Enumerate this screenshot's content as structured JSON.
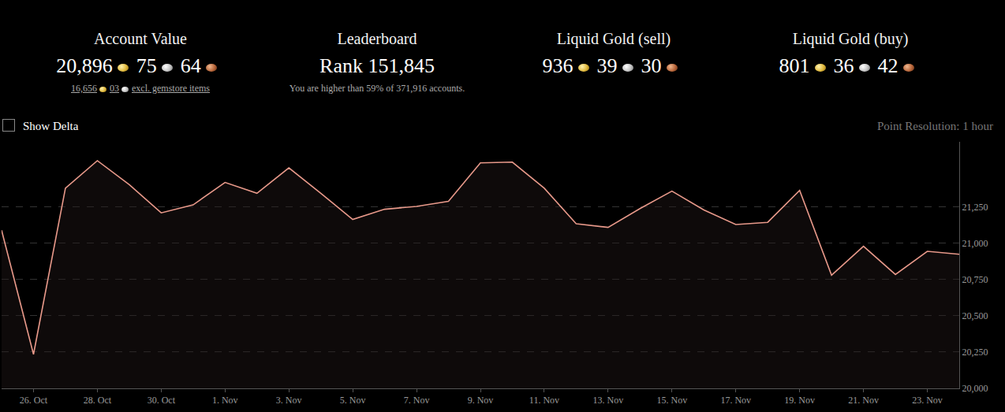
{
  "header": {
    "panels": [
      {
        "title": "Account Value",
        "value": {
          "gold": "20,896",
          "silver": "75",
          "copper": "64"
        },
        "sub": {
          "gold": "16,656",
          "silver": "03",
          "text": "excl. gemstore items"
        }
      },
      {
        "title": "Leaderboard",
        "text": "Rank 151,845",
        "note": "You are higher than 59% of 371,916 accounts."
      },
      {
        "title": "Liquid Gold (sell)",
        "value": {
          "gold": "936",
          "silver": "39",
          "copper": "30"
        }
      },
      {
        "title": "Liquid Gold (buy)",
        "value": {
          "gold": "801",
          "silver": "36",
          "copper": "42"
        }
      }
    ],
    "controls": {
      "checkbox": "Show Delta",
      "resolution": "Point Resolution: 1 hour"
    }
  },
  "chart_data": {
    "type": "line",
    "color": "#e8998a",
    "categories": [
      null,
      "26. Oct",
      null,
      "28. Oct",
      null,
      "30. Oct",
      null,
      "1. Nov",
      null,
      "3. Nov",
      null,
      "5. Nov",
      null,
      "7. Nov",
      null,
      "9. Nov",
      null,
      "11. Nov",
      null,
      "13. Nov",
      null,
      "15. Nov",
      null,
      "17. Nov",
      null,
      "19. Nov",
      null,
      "21. Nov",
      null,
      "23. Nov",
      null
    ],
    "values": [
      21090,
      20235,
      21380,
      21570,
      21405,
      21210,
      21265,
      21420,
      21345,
      21520,
      21345,
      21165,
      21235,
      21255,
      21290,
      21555,
      21560,
      21380,
      21135,
      21110,
      21240,
      21360,
      21230,
      21130,
      21145,
      21365,
      20780,
      20980,
      20785,
      20945,
      20925
    ],
    "ylim": [
      20000,
      21700
    ],
    "yticks": [
      {
        "value": 20000,
        "label": "20,000"
      },
      {
        "value": 20250,
        "label": "20,250"
      },
      {
        "value": 20500,
        "label": "20,500"
      },
      {
        "value": 20750,
        "label": "20,750"
      },
      {
        "value": 21000,
        "label": "21,000"
      },
      {
        "value": 21250,
        "label": "21,250"
      }
    ],
    "grid": true
  }
}
